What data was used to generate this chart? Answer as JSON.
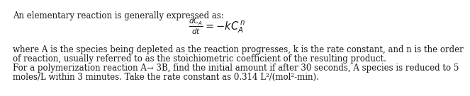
{
  "background_color": "#ffffff",
  "line1": "An elementary reaction is generally expressed as:",
  "formula": "$\\frac{dC_A}{dt} = -kC_A^{\\,n}$",
  "line3": "where A is the species being depleted as the reaction progresses, k is the rate constant, and n is the order",
  "line4": "of reaction, usually referred to as the stoichiometric coefficient of the resulting product.",
  "line5": "For a polymerization reaction A→ 3B, find the initial amount if after 30 seconds, A species is reduced to 5",
  "line6": "moles/L within 3 minutes. Take the rate constant as 0.314 L²/(mol²-min).",
  "font_size": 8.5,
  "formula_font_size": 10.5,
  "text_color": "#1a1a1a"
}
